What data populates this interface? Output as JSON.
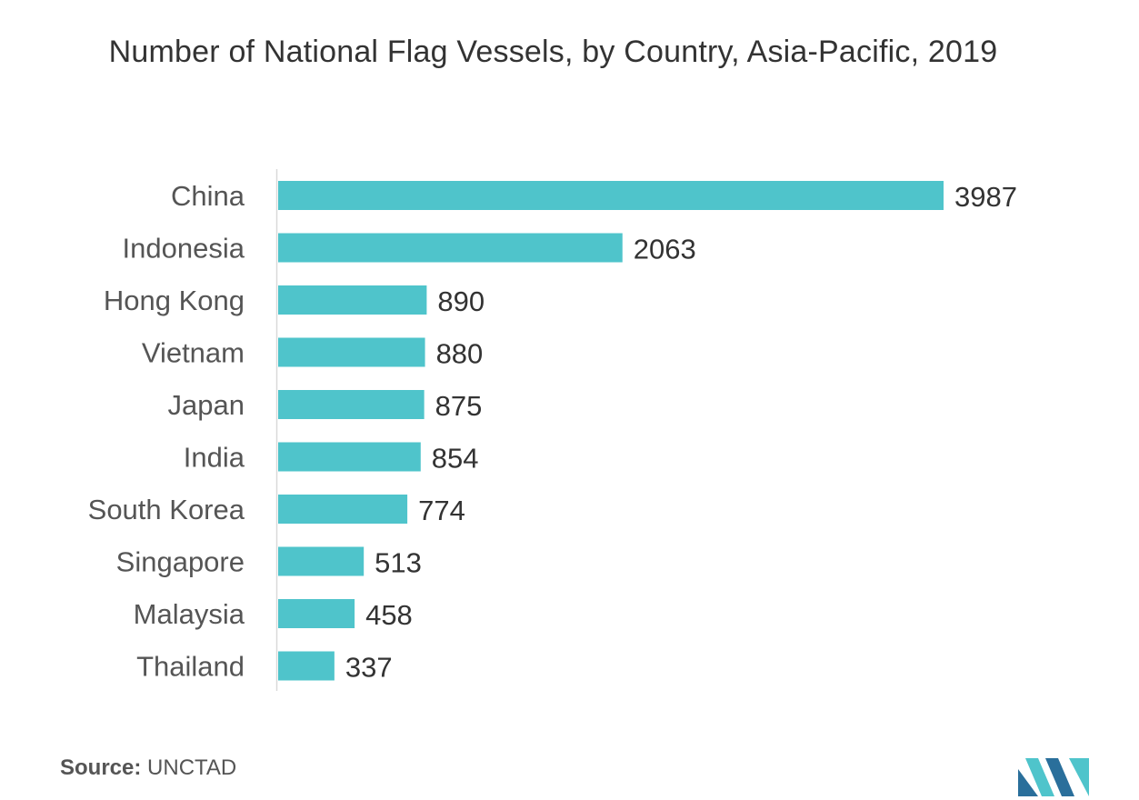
{
  "chart_data": {
    "type": "bar",
    "orientation": "horizontal",
    "title": "Number of National Flag Vessels, by Country, Asia-Pacific, 2019",
    "categories": [
      "China",
      "Indonesia",
      "Hong Kong",
      "Vietnam",
      "Japan",
      "India",
      "South Korea",
      "Singapore",
      "Malaysia",
      "Thailand"
    ],
    "values": [
      3987,
      2063,
      890,
      880,
      875,
      854,
      774,
      513,
      458,
      337
    ],
    "xlabel": "",
    "ylabel": "",
    "grid": false,
    "legend": "none",
    "data_labels": true
  },
  "source": {
    "label": "Source:",
    "value": "UNCTAD"
  },
  "colors": {
    "bar": "#4FC4CB",
    "axis": "#d9d9d9",
    "logo_dark": "#2A6F9B",
    "logo_light": "#4FC4CB"
  },
  "logo": {
    "icon": "mordor-intelligence-logo-icon"
  }
}
